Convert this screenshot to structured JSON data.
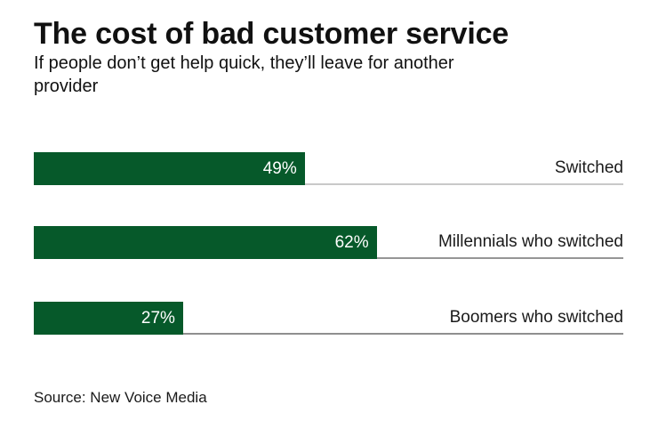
{
  "header": {
    "title": "The cost of bad customer service",
    "subtitle_lines": [
      "If people don’t get help quick, they’ll leave for another",
      "provider"
    ]
  },
  "chart_data": {
    "type": "bar",
    "orientation": "horizontal",
    "title": "The cost of bad customer service",
    "subtitle": "If people don’t get help quick, they’ll leave for another provider",
    "categories": [
      "Switched",
      "Millennials who switched",
      "Boomers who switched"
    ],
    "values": [
      49,
      62,
      27
    ],
    "value_labels": [
      "49%",
      "62%",
      "27%"
    ],
    "unit": "%",
    "xlim": [
      0,
      100
    ],
    "grid": "off",
    "legend": "none",
    "bar_color": "#06592a",
    "value_label_color": "#ffffff",
    "row_line_colors": [
      "#c9c9c9",
      "#969696",
      "#8f8f8f"
    ],
    "source": "Source: New Voice Media"
  },
  "footer": {
    "source": "Source: New Voice Media"
  }
}
